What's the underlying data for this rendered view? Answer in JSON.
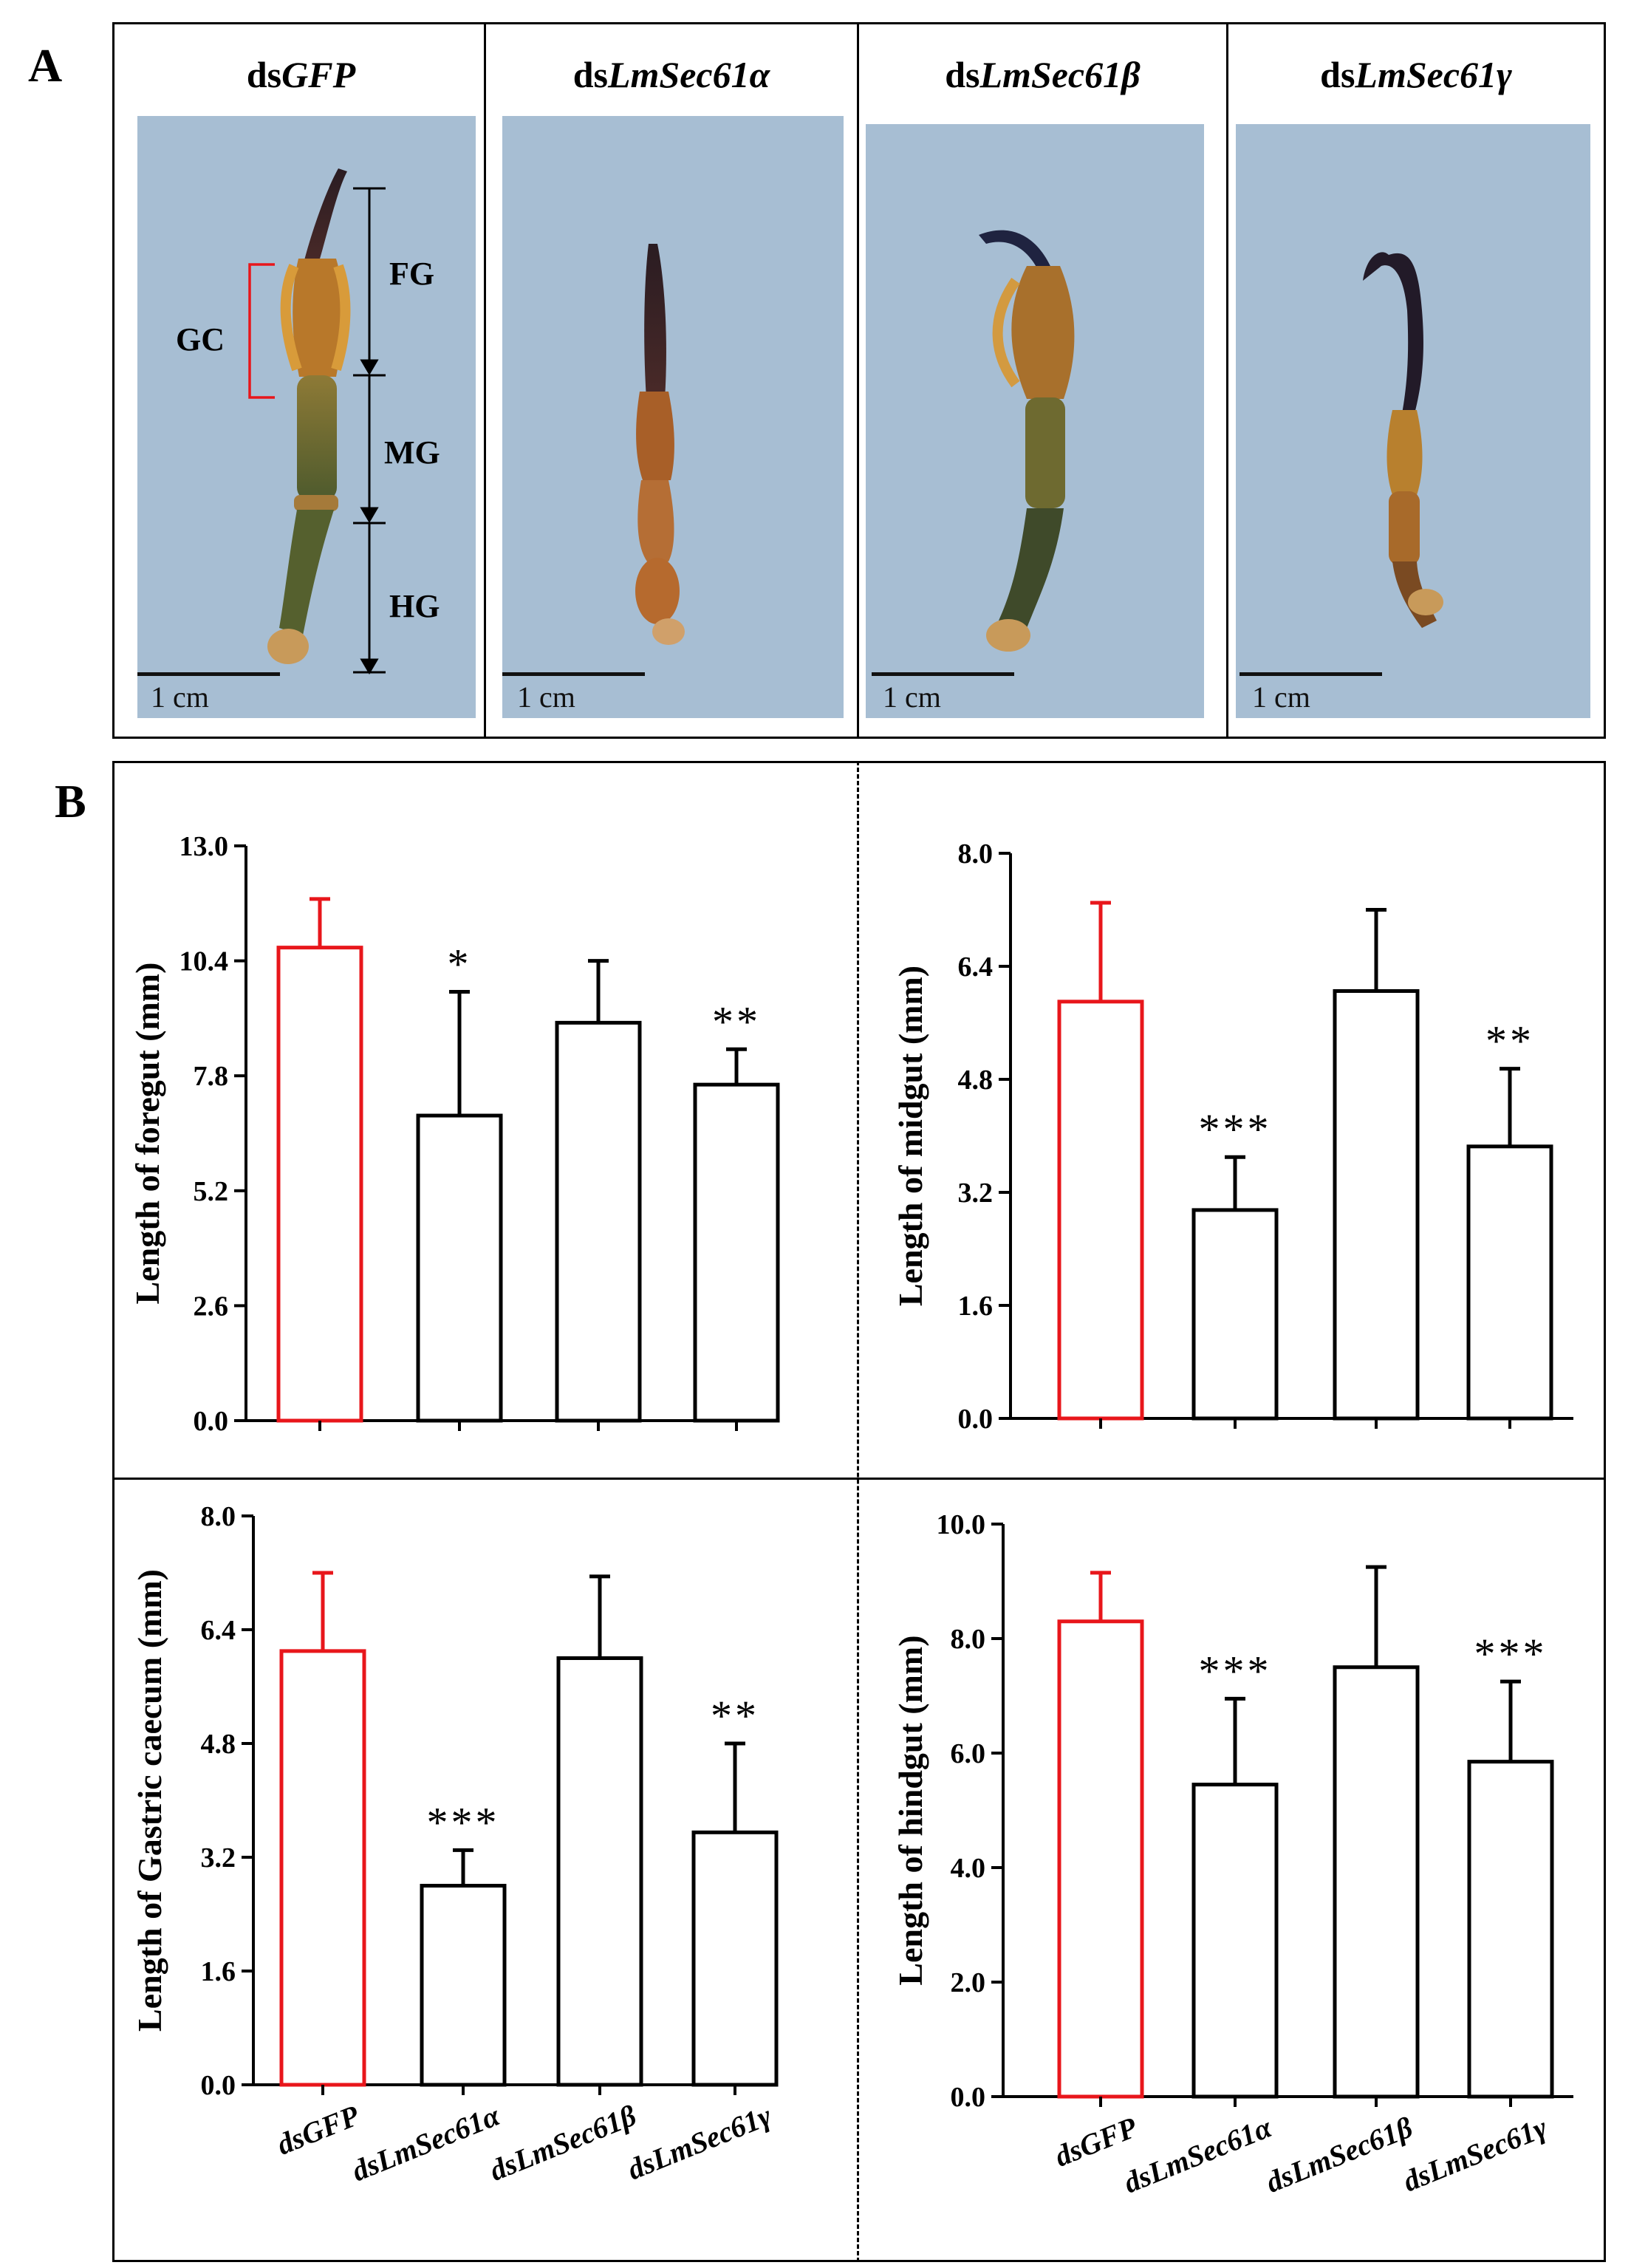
{
  "panel_a": {
    "letter": "A",
    "columns": [
      {
        "prefix": "ds",
        "gene": "GFP"
      },
      {
        "prefix": "ds",
        "gene": "LmSec61α"
      },
      {
        "prefix": "ds",
        "gene": "LmSec61β"
      },
      {
        "prefix": "ds",
        "gene": "LmSec61γ"
      }
    ],
    "scale_label": "1 cm",
    "annotations": {
      "gc": "GC",
      "fg": "FG",
      "mg": "MG",
      "hg": "HG"
    }
  },
  "panel_b": {
    "letter": "B"
  },
  "colors": {
    "control": "#e8161b",
    "treatment": "#000000",
    "photo_bg": "#a7bed3"
  },
  "chart_data": [
    {
      "type": "bar",
      "ylabel": "Length of foregut (mm)",
      "categories": [
        "dsGFP",
        "dsLmSec61α",
        "dsLmSec61β",
        "dsLmSec61γ"
      ],
      "values": [
        10.7,
        6.9,
        9.0,
        7.6
      ],
      "errors": [
        1.1,
        2.8,
        1.4,
        0.8
      ],
      "significance": [
        "",
        "*",
        "",
        "**"
      ],
      "ylim": [
        0,
        13.0
      ],
      "yticks": [
        "0.0",
        "2.6",
        "5.2",
        "7.8",
        "10.4",
        "13.0"
      ],
      "show_xticklabels": false
    },
    {
      "type": "bar",
      "ylabel": "Length of midgut (mm)",
      "categories": [
        "dsGFP",
        "dsLmSec61α",
        "dsLmSec61β",
        "dsLmSec61γ"
      ],
      "values": [
        5.9,
        2.95,
        6.05,
        3.85
      ],
      "errors": [
        1.4,
        0.75,
        1.15,
        1.1
      ],
      "significance": [
        "",
        "***",
        "",
        "**"
      ],
      "ylim": [
        0,
        8.0
      ],
      "yticks": [
        "0.0",
        "1.6",
        "3.2",
        "4.8",
        "6.4",
        "8.0"
      ],
      "show_xticklabels": false
    },
    {
      "type": "bar",
      "ylabel": "Length of Gastric caecum (mm)",
      "categories": [
        "dsGFP",
        "dsLmSec61α",
        "dsLmSec61β",
        "dsLmSec61γ"
      ],
      "values": [
        6.1,
        2.8,
        6.0,
        3.55
      ],
      "errors": [
        1.1,
        0.5,
        1.15,
        1.25
      ],
      "significance": [
        "",
        "***",
        "",
        "**"
      ],
      "ylim": [
        0,
        8.0
      ],
      "yticks": [
        "0.0",
        "1.6",
        "3.2",
        "4.8",
        "6.4",
        "8.0"
      ],
      "show_xticklabels": true
    },
    {
      "type": "bar",
      "ylabel": "Length of hindgut (mm)",
      "categories": [
        "dsGFP",
        "dsLmSec61α",
        "dsLmSec61β",
        "dsLmSec61γ"
      ],
      "values": [
        8.3,
        5.45,
        7.5,
        5.85
      ],
      "errors": [
        0.85,
        1.5,
        1.75,
        1.4
      ],
      "significance": [
        "",
        "***",
        "",
        "***"
      ],
      "ylim": [
        0,
        10.0
      ],
      "yticks": [
        "0.0",
        "2.0",
        "4.0",
        "6.0",
        "8.0",
        "10.0"
      ],
      "show_xticklabels": true
    }
  ]
}
